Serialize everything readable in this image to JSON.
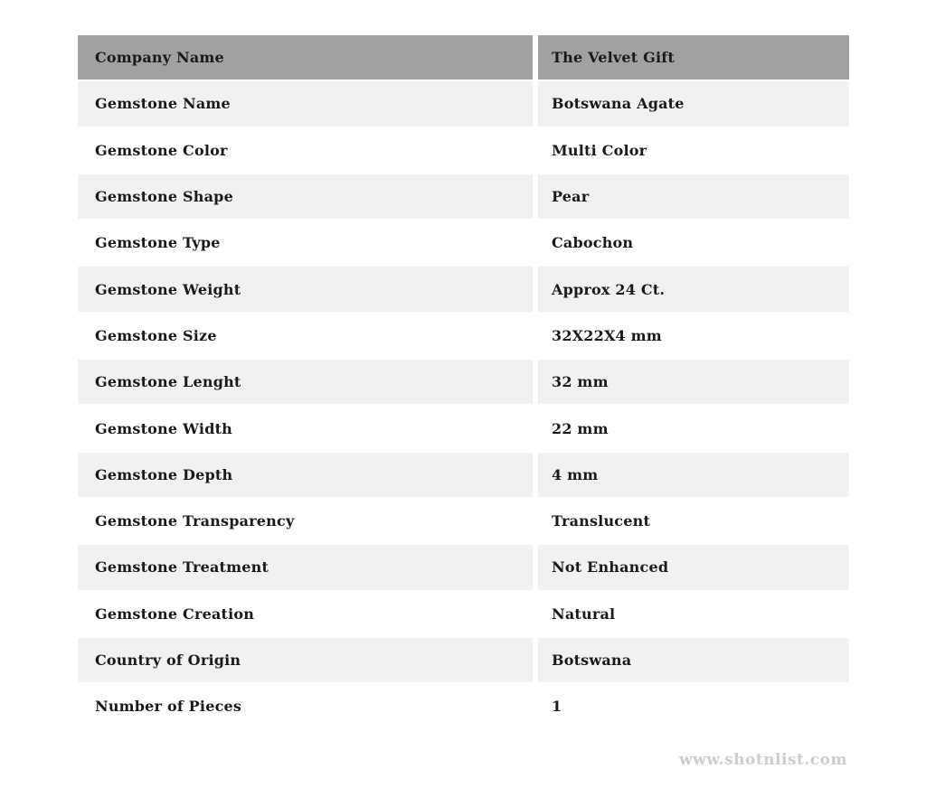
{
  "table": {
    "header": {
      "label": "Company Name",
      "value": "The Velvet Gift"
    },
    "rows": [
      {
        "label": "Gemstone Name",
        "value": "Botswana Agate"
      },
      {
        "label": "Gemstone Color",
        "value": "Multi Color"
      },
      {
        "label": "Gemstone Shape",
        "value": "Pear"
      },
      {
        "label": "Gemstone Type",
        "value": "Cabochon"
      },
      {
        "label": "Gemstone Weight",
        "value": "Approx 24 Ct."
      },
      {
        "label": "Gemstone Size",
        "value": "32X22X4 mm"
      },
      {
        "label": "Gemstone Lenght",
        "value": "32 mm"
      },
      {
        "label": "Gemstone Width",
        "value": "22 mm"
      },
      {
        "label": "Gemstone Depth",
        "value": "4 mm"
      },
      {
        "label": "Gemstone Transparency",
        "value": "Translucent"
      },
      {
        "label": "Gemstone Treatment",
        "value": "Not Enhanced"
      },
      {
        "label": "Gemstone Creation",
        "value": "Natural"
      },
      {
        "label": "Country of Origin",
        "value": "Botswana"
      },
      {
        "label": "Number of Pieces",
        "value": "1"
      }
    ],
    "colors": {
      "header_bg": "#a1a1a1",
      "row_alt_bg": "#f1f1f1",
      "row_bg": "#ffffff",
      "text": "#1a1a1a"
    }
  },
  "footer": {
    "watermark": "www.shotnlist.com",
    "watermark_color": "#cdcdcd"
  }
}
